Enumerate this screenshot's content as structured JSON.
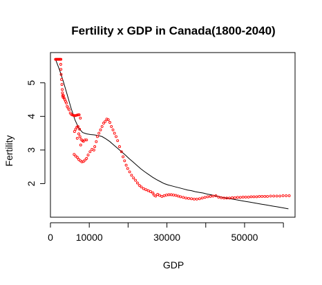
{
  "chart_data": {
    "type": "scatter",
    "title": "Fertility x GDP in Canada(1800-2040)",
    "xlabel": "GDP",
    "ylabel": "Fertility",
    "xlim": [
      0,
      63000
    ],
    "ylim": [
      1.0,
      5.9
    ],
    "xticks": [
      0,
      10000,
      20000,
      30000,
      40000,
      50000,
      60000
    ],
    "xtick_labels": [
      "0",
      "10000",
      "",
      "30000",
      "",
      "50000",
      ""
    ],
    "yticks": [
      2,
      3,
      4,
      5
    ],
    "ytick_labels": [
      "2",
      "3",
      "4",
      "5"
    ],
    "grid": false,
    "legend": "none",
    "colors": {
      "points": "#ff0000",
      "line": "#000000",
      "axis": "#000000"
    },
    "series": [
      {
        "type": "scatter",
        "points": [
          [
            1300,
            5.7
          ],
          [
            1500,
            5.7
          ],
          [
            1700,
            5.7
          ],
          [
            1900,
            5.7
          ],
          [
            2100,
            5.7
          ],
          [
            2300,
            5.7
          ],
          [
            2500,
            5.7
          ],
          [
            2700,
            5.7
          ],
          [
            2650,
            5.55
          ],
          [
            2700,
            5.4
          ],
          [
            2750,
            5.25
          ],
          [
            2850,
            5.1
          ],
          [
            2950,
            4.95
          ],
          [
            3050,
            4.8
          ],
          [
            3100,
            4.7
          ],
          [
            3150,
            4.62
          ],
          [
            3250,
            4.57
          ],
          [
            3350,
            4.62
          ],
          [
            3500,
            4.55
          ],
          [
            3700,
            4.5
          ],
          [
            3900,
            4.45
          ],
          [
            4100,
            4.4
          ],
          [
            4300,
            4.3
          ],
          [
            4550,
            4.25
          ],
          [
            4800,
            4.2
          ],
          [
            5100,
            4.1
          ],
          [
            5400,
            4.06
          ],
          [
            5700,
            4.04
          ],
          [
            6000,
            4.03
          ],
          [
            6300,
            4.02
          ],
          [
            6600,
            4.03
          ],
          [
            6900,
            4.04
          ],
          [
            7200,
            4.05
          ],
          [
            7400,
            4.05
          ],
          [
            7700,
            3.95
          ],
          [
            6200,
            3.55
          ],
          [
            6500,
            3.62
          ],
          [
            6800,
            3.68
          ],
          [
            7100,
            3.7
          ],
          [
            7500,
            3.62
          ],
          [
            7300,
            3.48
          ],
          [
            6900,
            3.35
          ],
          [
            7600,
            3.4
          ],
          [
            7900,
            3.32
          ],
          [
            8200,
            3.28
          ],
          [
            8500,
            3.26
          ],
          [
            8900,
            3.3
          ],
          [
            9300,
            3.3
          ],
          [
            7800,
            3.15
          ],
          [
            6100,
            2.87
          ],
          [
            6500,
            2.82
          ],
          [
            6900,
            2.78
          ],
          [
            7300,
            2.72
          ],
          [
            7700,
            2.68
          ],
          [
            8100,
            2.65
          ],
          [
            8500,
            2.66
          ],
          [
            8900,
            2.7
          ],
          [
            9300,
            2.75
          ],
          [
            9700,
            2.85
          ],
          [
            10200,
            2.95
          ],
          [
            10700,
            3.02
          ],
          [
            11200,
            3.0
          ],
          [
            11400,
            3.1
          ],
          [
            11800,
            3.25
          ],
          [
            12100,
            3.4
          ],
          [
            12500,
            3.5
          ],
          [
            12900,
            3.6
          ],
          [
            13300,
            3.7
          ],
          [
            13700,
            3.8
          ],
          [
            14100,
            3.85
          ],
          [
            14500,
            3.92
          ],
          [
            14900,
            3.9
          ],
          [
            15300,
            3.82
          ],
          [
            15700,
            3.7
          ],
          [
            16100,
            3.6
          ],
          [
            16500,
            3.5
          ],
          [
            16900,
            3.4
          ],
          [
            17300,
            3.28
          ],
          [
            17800,
            3.1
          ],
          [
            18300,
            2.95
          ],
          [
            18700,
            2.8
          ],
          [
            19100,
            2.68
          ],
          [
            19500,
            2.55
          ],
          [
            19900,
            2.45
          ],
          [
            20400,
            2.35
          ],
          [
            20900,
            2.25
          ],
          [
            21400,
            2.17
          ],
          [
            21900,
            2.1
          ],
          [
            22400,
            2.02
          ],
          [
            22900,
            1.95
          ],
          [
            23400,
            1.9
          ],
          [
            24000,
            1.85
          ],
          [
            24600,
            1.82
          ],
          [
            25200,
            1.79
          ],
          [
            25800,
            1.76
          ],
          [
            26400,
            1.72
          ],
          [
            26700,
            1.66
          ],
          [
            27100,
            1.63
          ],
          [
            27600,
            1.68
          ],
          [
            28100,
            1.65
          ],
          [
            28700,
            1.62
          ],
          [
            29300,
            1.64
          ],
          [
            29900,
            1.66
          ],
          [
            30500,
            1.67
          ],
          [
            31100,
            1.67
          ],
          [
            31700,
            1.66
          ],
          [
            32300,
            1.65
          ],
          [
            32900,
            1.63
          ],
          [
            33500,
            1.61
          ],
          [
            34200,
            1.59
          ],
          [
            34900,
            1.57
          ],
          [
            35600,
            1.56
          ],
          [
            36300,
            1.55
          ],
          [
            37000,
            1.54
          ],
          [
            37700,
            1.54
          ],
          [
            38400,
            1.55
          ],
          [
            39100,
            1.57
          ],
          [
            39800,
            1.59
          ],
          [
            40500,
            1.61
          ],
          [
            41200,
            1.62
          ],
          [
            41900,
            1.63
          ],
          [
            42600,
            1.64
          ],
          [
            43300,
            1.6
          ],
          [
            44000,
            1.58
          ],
          [
            44700,
            1.57
          ],
          [
            45400,
            1.57
          ],
          [
            46100,
            1.57
          ],
          [
            46800,
            1.58
          ],
          [
            47500,
            1.58
          ],
          [
            48200,
            1.59
          ],
          [
            48900,
            1.59
          ],
          [
            49600,
            1.6
          ],
          [
            50300,
            1.6
          ],
          [
            51000,
            1.6
          ],
          [
            51700,
            1.61
          ],
          [
            52400,
            1.61
          ],
          [
            53100,
            1.61
          ],
          [
            53800,
            1.62
          ],
          [
            54500,
            1.62
          ],
          [
            55200,
            1.62
          ],
          [
            55900,
            1.62
          ],
          [
            56700,
            1.63
          ],
          [
            57500,
            1.63
          ],
          [
            58300,
            1.63
          ],
          [
            59100,
            1.63
          ],
          [
            59900,
            1.64
          ],
          [
            60700,
            1.64
          ],
          [
            61500,
            1.64
          ]
        ]
      },
      {
        "type": "line",
        "points": [
          [
            1300,
            5.7
          ],
          [
            2300,
            5.4
          ],
          [
            3300,
            5.05
          ],
          [
            4300,
            4.65
          ],
          [
            5300,
            4.25
          ],
          [
            6300,
            3.9
          ],
          [
            7300,
            3.65
          ],
          [
            8300,
            3.52
          ],
          [
            9300,
            3.48
          ],
          [
            10300,
            3.46
          ],
          [
            11300,
            3.45
          ],
          [
            12300,
            3.43
          ],
          [
            13300,
            3.4
          ],
          [
            14300,
            3.33
          ],
          [
            15300,
            3.25
          ],
          [
            16300,
            3.15
          ],
          [
            17300,
            3.05
          ],
          [
            18300,
            2.95
          ],
          [
            19300,
            2.85
          ],
          [
            20300,
            2.74
          ],
          [
            21300,
            2.64
          ],
          [
            22300,
            2.54
          ],
          [
            23300,
            2.44
          ],
          [
            24300,
            2.35
          ],
          [
            25300,
            2.27
          ],
          [
            26300,
            2.19
          ],
          [
            27300,
            2.12
          ],
          [
            28300,
            2.06
          ],
          [
            29300,
            2.0
          ],
          [
            30300,
            1.96
          ],
          [
            31300,
            1.93
          ],
          [
            32300,
            1.9
          ],
          [
            33300,
            1.87
          ],
          [
            34300,
            1.84
          ],
          [
            35300,
            1.81
          ],
          [
            36300,
            1.79
          ],
          [
            37300,
            1.76
          ],
          [
            38300,
            1.74
          ],
          [
            39300,
            1.72
          ],
          [
            40300,
            1.69
          ],
          [
            41300,
            1.67
          ],
          [
            42300,
            1.64
          ],
          [
            43300,
            1.62
          ],
          [
            44300,
            1.59
          ],
          [
            45300,
            1.57
          ],
          [
            46300,
            1.55
          ],
          [
            47300,
            1.53
          ],
          [
            48300,
            1.51
          ],
          [
            49300,
            1.49
          ],
          [
            50300,
            1.47
          ],
          [
            51300,
            1.45
          ],
          [
            52300,
            1.43
          ],
          [
            53300,
            1.41
          ],
          [
            54300,
            1.39
          ],
          [
            55300,
            1.37
          ],
          [
            56300,
            1.35
          ],
          [
            57300,
            1.33
          ],
          [
            58300,
            1.31
          ],
          [
            59300,
            1.29
          ],
          [
            60300,
            1.27
          ],
          [
            61300,
            1.25
          ]
        ]
      }
    ]
  }
}
